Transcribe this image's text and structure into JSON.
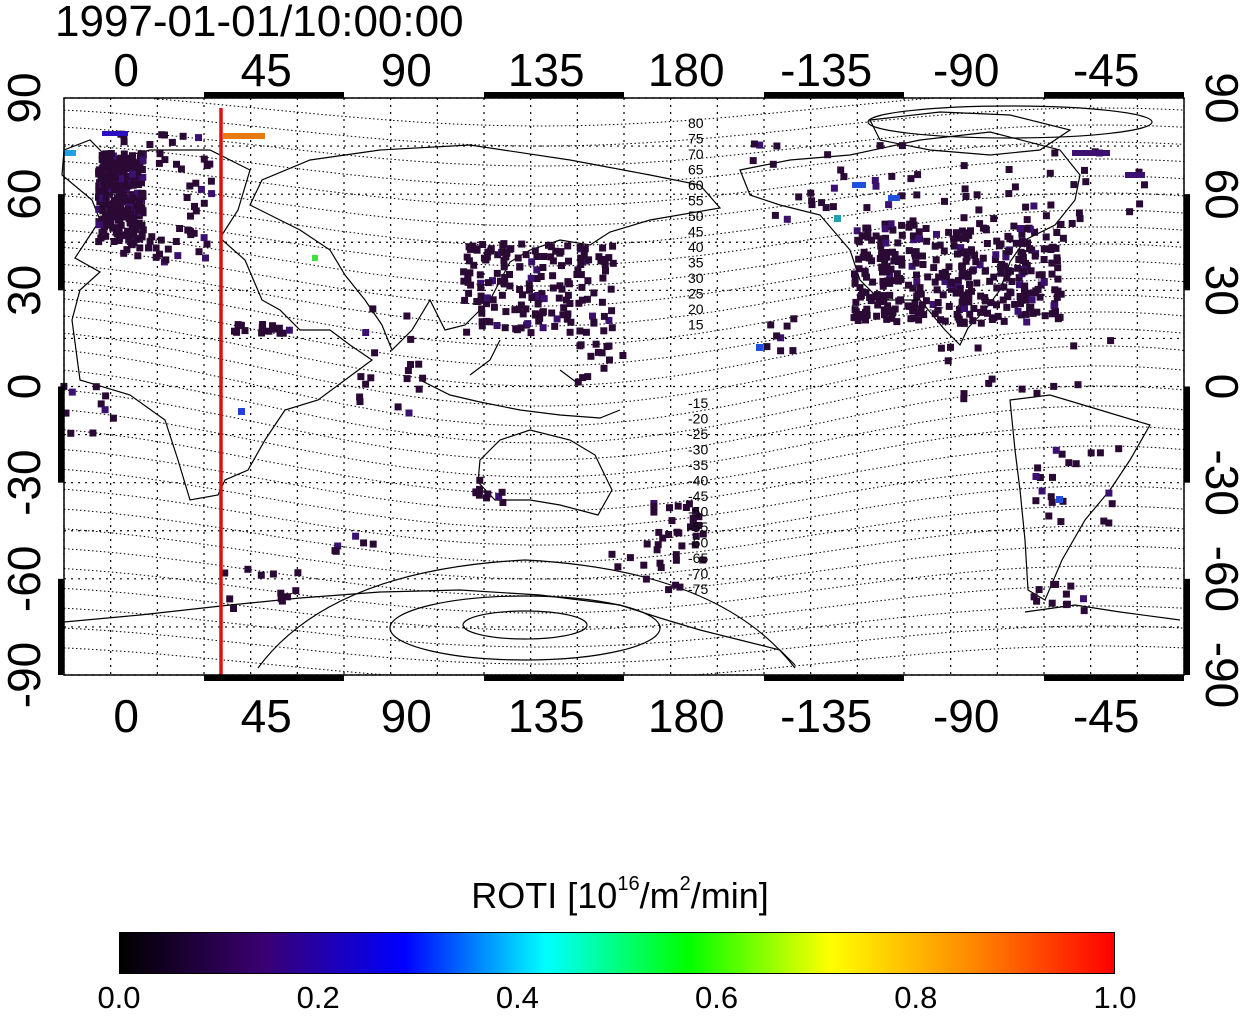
{
  "title": "1997-01-01/10:00:00",
  "map": {
    "x_ticks_top": [
      "0",
      "45",
      "90",
      "135",
      "180",
      "-135",
      "-90",
      "-45"
    ],
    "x_ticks_bottom": [
      "0",
      "45",
      "90",
      "135",
      "180",
      "-135",
      "-90",
      "-45"
    ],
    "y_ticks_left": [
      "90",
      "60",
      "30",
      "0",
      "-30",
      "-60",
      "-90"
    ],
    "y_ticks_right": [
      "90",
      "60",
      "30",
      "0",
      "-30",
      "-60",
      "-90"
    ],
    "x_range": [
      -20,
      340
    ],
    "y_range": [
      -90,
      90
    ],
    "grid": "dotted",
    "marker_line": {
      "longitude": 30,
      "color": "#dd1111"
    },
    "contour_labels_north": [
      "80",
      "75",
      "70",
      "65",
      "60",
      "55",
      "50",
      "45",
      "40",
      "35",
      "30",
      "25",
      "20",
      "15"
    ],
    "contour_labels_south": [
      "-15",
      "-20",
      "-25",
      "-30",
      "-35",
      "-40",
      "-45",
      "-50",
      "-55",
      "-60",
      "-65",
      "-70",
      "-75"
    ]
  },
  "colorbar": {
    "title_text": "ROTI  [10",
    "title_exp1": "16",
    "title_mid": "/m",
    "title_exp2": "2",
    "title_end": "/min]",
    "ticks": [
      "0.0",
      "0.2",
      "0.4",
      "0.6",
      "0.8",
      "1.0"
    ],
    "range": [
      0,
      1
    ],
    "colormap": [
      "#000000",
      "#3a0070",
      "#0000ff",
      "#00ffff",
      "#00ff00",
      "#ffff00",
      "#ff8800",
      "#ff0000"
    ]
  }
}
